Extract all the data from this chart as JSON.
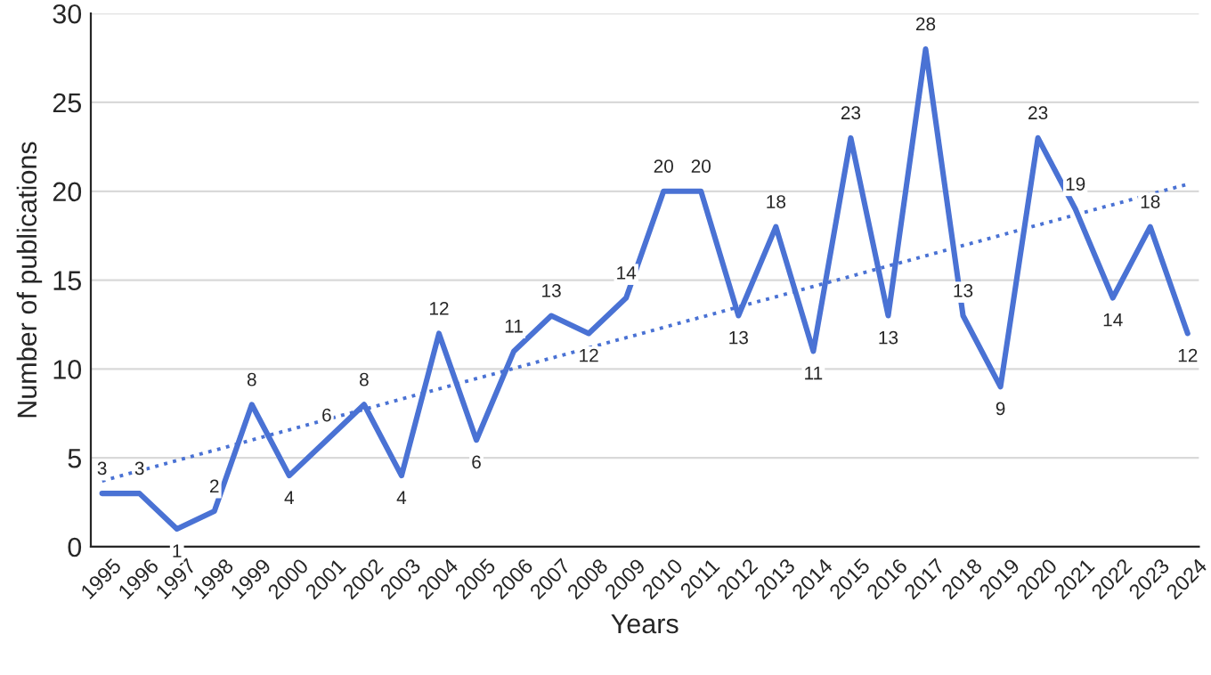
{
  "chart_data": {
    "type": "line",
    "xlabel": "Years",
    "ylabel": "Number of publications",
    "xlim": [
      1994.7,
      2024.3
    ],
    "xticks": [
      1995,
      1996,
      1997,
      1998,
      1999,
      2000,
      2001,
      2002,
      2003,
      2004,
      2005,
      2006,
      2007,
      2008,
      2009,
      2010,
      2011,
      2012,
      2013,
      2014,
      2015,
      2016,
      2017,
      2018,
      2019,
      2020,
      2021,
      2022,
      2023,
      2024
    ],
    "ylim": [
      0,
      30
    ],
    "yticks": [
      0,
      5,
      10,
      15,
      20,
      25,
      30
    ],
    "grid": "y",
    "series": [
      {
        "color": "#4a72d4",
        "data_labels": true,
        "line_style": "solid",
        "x": [
          1995,
          1996,
          1997,
          1998,
          1999,
          2000,
          2001,
          2002,
          2003,
          2004,
          2005,
          2006,
          2007,
          2008,
          2009,
          2010,
          2011,
          2012,
          2013,
          2014,
          2015,
          2016,
          2017,
          2018,
          2019,
          2020,
          2021,
          2022,
          2023,
          2024
        ],
        "values": [
          3,
          3,
          1,
          2,
          8,
          4,
          6,
          8,
          4,
          12,
          6,
          11,
          13,
          12,
          14,
          20,
          20,
          13,
          18,
          11,
          23,
          13,
          28,
          13,
          9,
          23,
          19,
          14,
          18,
          12
        ]
      },
      {
        "type": "line",
        "color": "#4a72d4",
        "line_style": "dotted",
        "x": [
          1995,
          2024
        ],
        "values": [
          3.7,
          20.4
        ]
      }
    ]
  }
}
